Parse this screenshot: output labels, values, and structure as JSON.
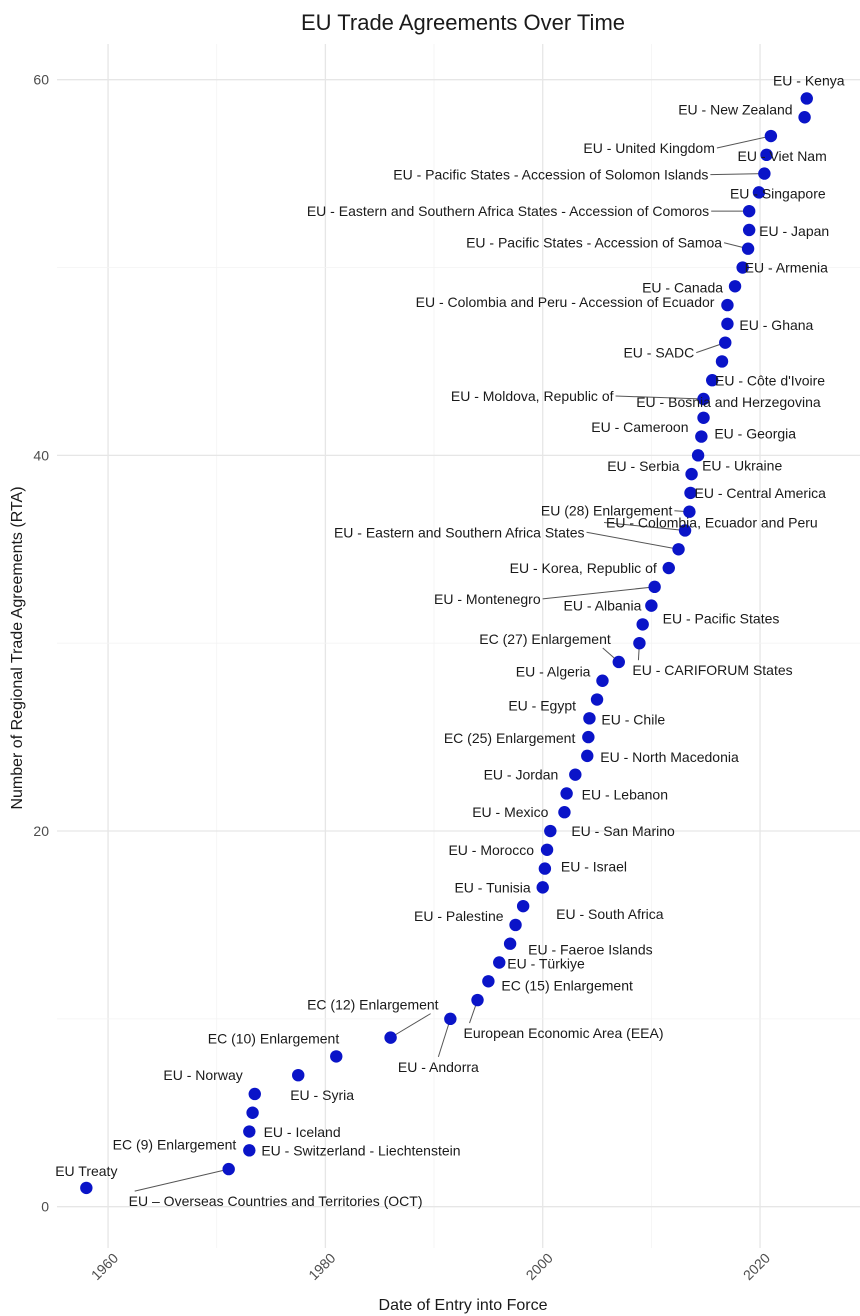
{
  "chart_data": {
    "type": "scatter",
    "title": "EU Trade Agreements Over Time",
    "xlabel": "Date of Entry into Force",
    "ylabel": "Number of Regional Trade Agreements (RTA)",
    "x_ticks": [
      "1960",
      "1980",
      "2000",
      "2020"
    ],
    "y_ticks": [
      "0",
      "20",
      "40",
      "60"
    ],
    "xlim": [
      1955.3,
      2029.2
    ],
    "ylim": [
      -2.2,
      61.9
    ],
    "grid": true,
    "legend": "none",
    "point_color": "#0a14c8",
    "points": [
      {
        "x": 1958.0,
        "y": 1,
        "label": "EU Treaty"
      },
      {
        "x": 1971.1,
        "y": 2,
        "label": "EU – Overseas Countries and Territories (OCT)"
      },
      {
        "x": 1973.0,
        "y": 3,
        "label": "EU - Switzerland - Liechtenstein"
      },
      {
        "x": 1973.0,
        "y": 4,
        "label": "EC (9) Enlargement"
      },
      {
        "x": 1973.3,
        "y": 5,
        "label": "EU - Iceland"
      },
      {
        "x": 1973.5,
        "y": 6,
        "label": "EU - Norway"
      },
      {
        "x": 1977.5,
        "y": 7,
        "label": "EU - Syria"
      },
      {
        "x": 1981.0,
        "y": 8,
        "label": "EC (10) Enlargement"
      },
      {
        "x": 1986.0,
        "y": 9,
        "label": "EC (12) Enlargement"
      },
      {
        "x": 1991.5,
        "y": 10,
        "label": "EU - Andorra"
      },
      {
        "x": 1994.0,
        "y": 11,
        "label": "European Economic Area (EEA)"
      },
      {
        "x": 1995.0,
        "y": 12,
        "label": "EC (15) Enlargement"
      },
      {
        "x": 1996.0,
        "y": 13,
        "label": "EU - Türkiye"
      },
      {
        "x": 1997.0,
        "y": 14,
        "label": "EU - Faeroe Islands"
      },
      {
        "x": 1997.5,
        "y": 15,
        "label": "EU - Palestine"
      },
      {
        "x": 1998.2,
        "y": 16,
        "label": "EU - South Africa"
      },
      {
        "x": 2000.0,
        "y": 17,
        "label": "EU - Tunisia"
      },
      {
        "x": 2000.2,
        "y": 18,
        "label": "EU - Israel"
      },
      {
        "x": 2000.4,
        "y": 19,
        "label": "EU - Morocco"
      },
      {
        "x": 2000.7,
        "y": 20,
        "label": "EU - San Marino"
      },
      {
        "x": 2002.0,
        "y": 21,
        "label": "EU - Mexico"
      },
      {
        "x": 2002.2,
        "y": 22,
        "label": "EU - Lebanon"
      },
      {
        "x": 2003.0,
        "y": 23,
        "label": "EU - Jordan"
      },
      {
        "x": 2004.1,
        "y": 24,
        "label": "EU - North Macedonia"
      },
      {
        "x": 2004.2,
        "y": 25,
        "label": "EC (25) Enlargement"
      },
      {
        "x": 2004.3,
        "y": 26,
        "label": "EU - Chile"
      },
      {
        "x": 2005.0,
        "y": 27,
        "label": "EU - Egypt"
      },
      {
        "x": 2005.5,
        "y": 28,
        "label": "EU - Algeria"
      },
      {
        "x": 2007.0,
        "y": 29,
        "label": "EC (27) Enlargement"
      },
      {
        "x": 2008.9,
        "y": 30,
        "label": "EU - CARIFORUM States"
      },
      {
        "x": 2009.2,
        "y": 31,
        "label": "EU - Pacific States"
      },
      {
        "x": 2010.0,
        "y": 32,
        "label": "EU - Albania"
      },
      {
        "x": 2010.3,
        "y": 33,
        "label": "EU - Montenegro"
      },
      {
        "x": 2011.6,
        "y": 34,
        "label": "EU - Korea, Republic of"
      },
      {
        "x": 2012.5,
        "y": 35,
        "label": "EU - Eastern and Southern Africa States"
      },
      {
        "x": 2013.1,
        "y": 36,
        "label": "EU - Colombia, Ecuador and Peru"
      },
      {
        "x": 2013.5,
        "y": 37,
        "label": "EU (28) Enlargement"
      },
      {
        "x": 2013.6,
        "y": 38,
        "label": "EU - Central America"
      },
      {
        "x": 2013.7,
        "y": 39,
        "label": "EU - Serbia"
      },
      {
        "x": 2014.3,
        "y": 40,
        "label": "EU - Ukraine"
      },
      {
        "x": 2014.6,
        "y": 41,
        "label": "EU - Georgia"
      },
      {
        "x": 2014.8,
        "y": 42,
        "label": "EU - Cameroon"
      },
      {
        "x": 2014.8,
        "y": 43,
        "label": "EU - Moldova, Republic of"
      },
      {
        "x": 2015.6,
        "y": 44,
        "label": "EU - Bosnia and Herzegovina"
      },
      {
        "x": 2016.5,
        "y": 45,
        "label": "EU - Côte d'Ivoire"
      },
      {
        "x": 2016.8,
        "y": 46,
        "label": "EU - SADC"
      },
      {
        "x": 2017.0,
        "y": 47,
        "label": "EU - Ghana"
      },
      {
        "x": 2017.0,
        "y": 48,
        "label": "EU - Colombia and Peru - Accession of Ecuador"
      },
      {
        "x": 2017.7,
        "y": 49,
        "label": "EU - Canada"
      },
      {
        "x": 2018.4,
        "y": 50,
        "label": "EU - Armenia"
      },
      {
        "x": 2018.9,
        "y": 51,
        "label": "EU - Pacific States - Accession of Samoa"
      },
      {
        "x": 2019.0,
        "y": 52,
        "label": "EU - Japan"
      },
      {
        "x": 2019.0,
        "y": 53,
        "label": "EU - Eastern and Southern Africa States - Accession of Comoros"
      },
      {
        "x": 2019.9,
        "y": 54,
        "label": "EU - Singapore"
      },
      {
        "x": 2020.4,
        "y": 55,
        "label": "EU - Pacific States - Accession of Solomon Islands"
      },
      {
        "x": 2020.6,
        "y": 56,
        "label": "EU - Viet Nam"
      },
      {
        "x": 2021.0,
        "y": 57,
        "label": "EU - United Kingdom"
      },
      {
        "x": 2024.1,
        "y": 58,
        "label": "EU - New Zealand"
      },
      {
        "x": 2024.3,
        "y": 59,
        "label": "EU - Kenya"
      }
    ]
  }
}
